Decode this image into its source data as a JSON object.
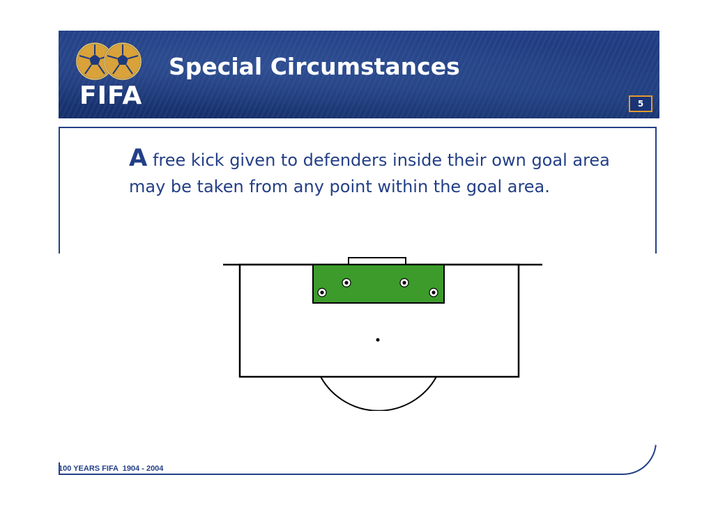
{
  "header": {
    "title": "Special Circumstances",
    "logo_text": "FIFA",
    "page_number": "5",
    "logo_icon": "soccer-balls-logo"
  },
  "body": {
    "dropcap": "A",
    "text": " free kick given to defenders inside their own goal area may be taken from any point within the goal area."
  },
  "diagram": {
    "goal_area_color": "#3c9b2b",
    "ball_icon": "soccer-ball-icon",
    "ball_count": 4
  },
  "footer": {
    "text": "100 YEARS FIFA  1904 - 2004"
  },
  "colors": {
    "brand_blue": "#233f86",
    "accent_orange": "#e69a2e"
  }
}
